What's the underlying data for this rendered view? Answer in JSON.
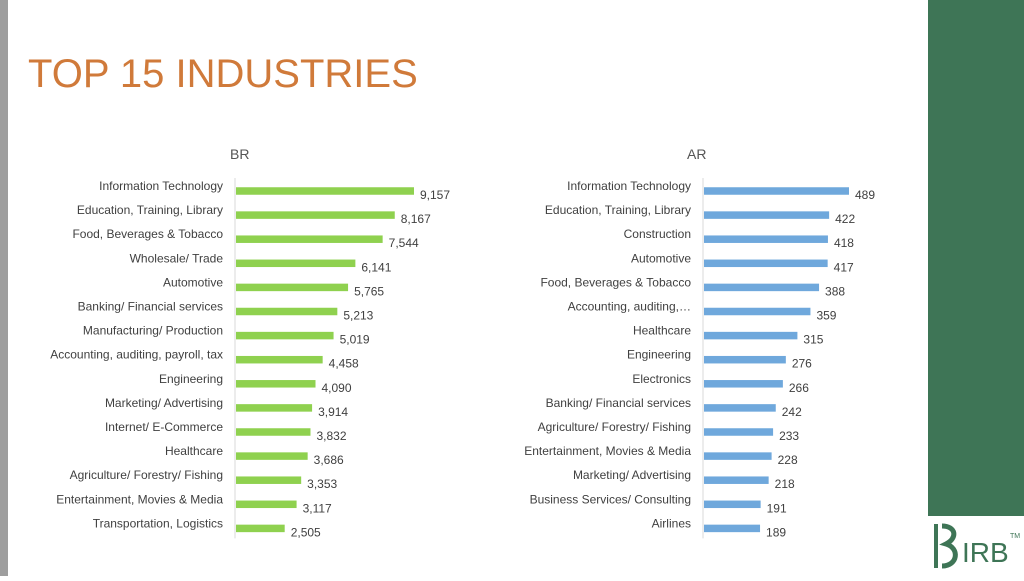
{
  "page": {
    "title": "TOP 15 INDUSTRIES"
  },
  "logo": {
    "text": "IRB",
    "tm": "TM"
  },
  "colors": {
    "br_bar": "#8fd14f",
    "ar_bar": "#6fa8dc",
    "title": "#d07a3a",
    "side_panel": "#3e7556"
  },
  "chart_data": [
    {
      "type": "bar",
      "orientation": "horizontal",
      "title": "BR",
      "categories": [
        "Information Technology",
        "Education, Training, Library",
        "Food, Beverages & Tobacco",
        "Wholesale/ Trade",
        "Automotive",
        "Banking/ Financial services",
        "Manufacturing/ Production",
        "Accounting, auditing, payroll, tax",
        "Engineering",
        "Marketing/ Advertising",
        "Internet/ E-Commerce",
        "Healthcare",
        "Agriculture/ Forestry/ Fishing",
        "Entertainment, Movies & Media",
        "Transportation, Logistics"
      ],
      "values": [
        9157,
        8167,
        7544,
        6141,
        5765,
        5213,
        5019,
        4458,
        4090,
        3914,
        3832,
        3686,
        3353,
        3117,
        2505
      ],
      "value_labels": [
        "9,157",
        "8,167",
        "7,544",
        "6,141",
        "5,765",
        "5,213",
        "5,019",
        "4,458",
        "4,090",
        "3,914",
        "3,832",
        "3,686",
        "3,353",
        "3,117",
        "2,505"
      ],
      "xlim": [
        0,
        9157
      ],
      "grid": false,
      "legend": "none"
    },
    {
      "type": "bar",
      "orientation": "horizontal",
      "title": "AR",
      "categories": [
        "Information Technology",
        "Education, Training, Library",
        "Construction",
        "Automotive",
        "Food, Beverages & Tobacco",
        "Accounting, auditing,…",
        "Healthcare",
        "Engineering",
        "Electronics",
        "Banking/ Financial services",
        "Agriculture/ Forestry/ Fishing",
        "Entertainment, Movies & Media",
        "Marketing/ Advertising",
        "Business Services/ Consulting",
        "Airlines"
      ],
      "values": [
        489,
        422,
        418,
        417,
        388,
        359,
        315,
        276,
        266,
        242,
        233,
        228,
        218,
        191,
        189
      ],
      "value_labels": [
        "489",
        "422",
        "418",
        "417",
        "388",
        "359",
        "315",
        "276",
        "266",
        "242",
        "233",
        "228",
        "218",
        "191",
        "189"
      ],
      "xlim": [
        0,
        489
      ],
      "grid": false,
      "legend": "none"
    }
  ]
}
